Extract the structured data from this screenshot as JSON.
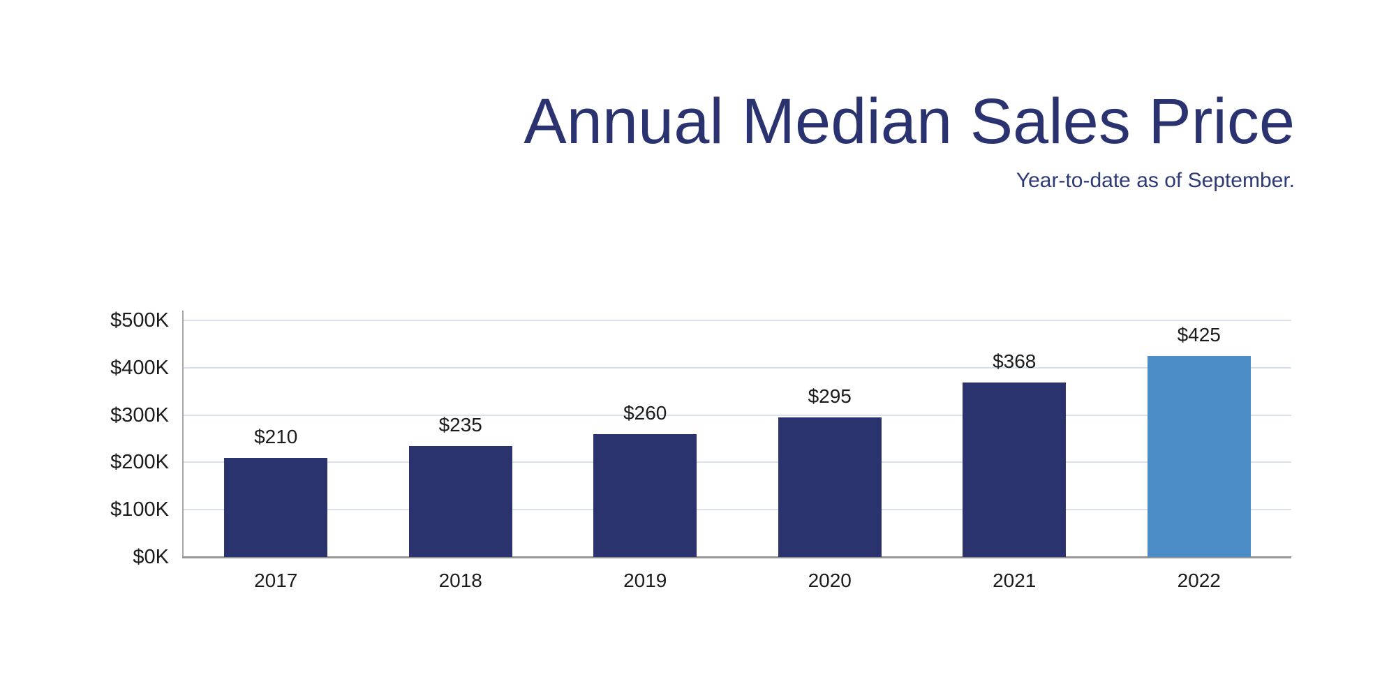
{
  "header": {
    "title": "Annual Median Sales Price",
    "subtitle": "Year-to-date as of September."
  },
  "chart_data": {
    "type": "bar",
    "title": "Annual Median Sales Price",
    "subtitle": "Year-to-date as of September.",
    "categories": [
      "2017",
      "2018",
      "2019",
      "2020",
      "2021",
      "2022"
    ],
    "values": [
      210,
      235,
      260,
      295,
      368,
      425
    ],
    "value_labels": [
      "$210",
      "$235",
      "$260",
      "$295",
      "$368",
      "$425"
    ],
    "unit": "thousand dollars",
    "xlabel": "",
    "ylabel": "",
    "y_ticks": [
      {
        "value": 0,
        "label": "$0K"
      },
      {
        "value": 100,
        "label": "$100K"
      },
      {
        "value": 200,
        "label": "$200K"
      },
      {
        "value": 300,
        "label": "$300K"
      },
      {
        "value": 400,
        "label": "$400K"
      },
      {
        "value": 500,
        "label": "$500K"
      }
    ],
    "ylim": [
      0,
      500
    ],
    "grid": true,
    "legend": false,
    "highlight_index": 5,
    "colors": {
      "bar_default": "#2B336E",
      "bar_highlight": "#4C8DC8",
      "title": "#2A336F",
      "subtitle": "#2E3A73",
      "grid": "#D9E1EF",
      "axis_y": "#A6A6A6",
      "axis_x": "#969696",
      "tick_text": "#1b1b1b"
    }
  }
}
